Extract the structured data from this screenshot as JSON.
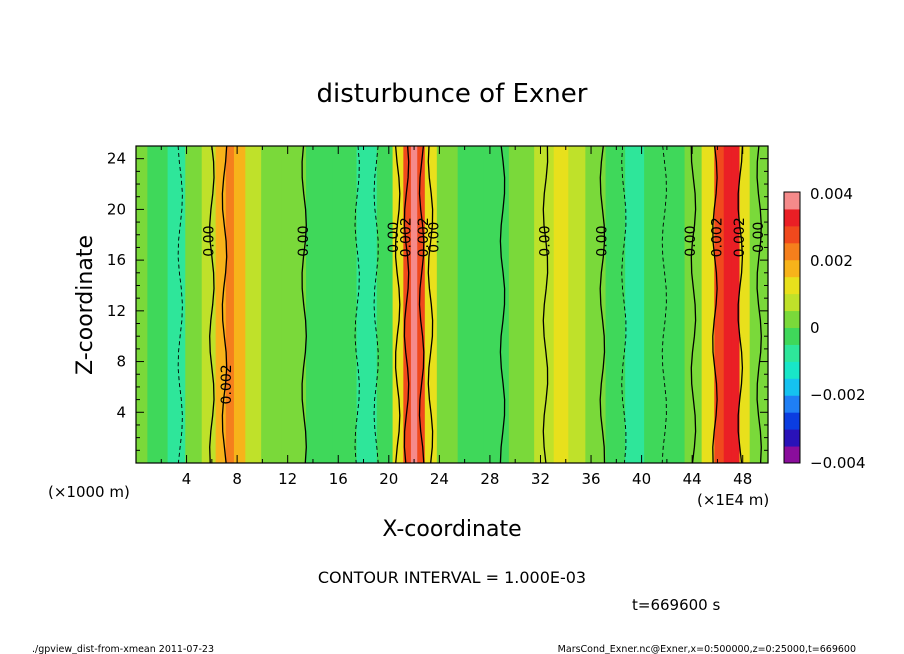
{
  "chart_data": {
    "type": "heatmap",
    "title": "disturbunce of Exner",
    "xlabel": "X-coordinate",
    "ylabel": "Z-coordinate",
    "x_unit_left": "(×1000 m)",
    "x_unit_right": "(×1E4 m)",
    "xlim": [
      0,
      50
    ],
    "ylim": [
      0,
      25
    ],
    "x_ticks": [
      "4",
      "8",
      "12",
      "16",
      "20",
      "24",
      "28",
      "32",
      "36",
      "40",
      "44",
      "48"
    ],
    "y_ticks": [
      "4",
      "8",
      "12",
      "16",
      "20",
      "24"
    ],
    "colorbar": {
      "range": [
        -0.004,
        0.004
      ],
      "labels": [
        "0.004",
        "0.002",
        "0",
        "−0.002",
        "−0.004"
      ],
      "colors": [
        "#8a0d9c",
        "#2a12b8",
        "#0b3de0",
        "#1f7ff5",
        "#15c2f0",
        "#18e6c8",
        "#2ee69a",
        "#3fd85a",
        "#7ad93a",
        "#bfe12a",
        "#e8e01c",
        "#f7b31a",
        "#f57f1c",
        "#f0491d",
        "#ea1f25",
        "#f58a8a"
      ]
    },
    "columns": [
      {
        "x": 0.0,
        "v": 0.0
      },
      {
        "x": 1.8,
        "v": -0.0003
      },
      {
        "x": 3.2,
        "v": -0.0006
      },
      {
        "x": 4.6,
        "v": 0.0
      },
      {
        "x": 5.8,
        "v": 0.0006
      },
      {
        "x": 6.8,
        "v": 0.0015
      },
      {
        "x": 7.4,
        "v": 0.0024
      },
      {
        "x": 8.1,
        "v": 0.0016
      },
      {
        "x": 9.2,
        "v": 0.0007
      },
      {
        "x": 10.6,
        "v": 0.0003
      },
      {
        "x": 12.4,
        "v": 0.0
      },
      {
        "x": 14.5,
        "v": -0.0003
      },
      {
        "x": 16.6,
        "v": -0.0005
      },
      {
        "x": 18.3,
        "v": -0.0007
      },
      {
        "x": 19.8,
        "v": -0.0002
      },
      {
        "x": 20.8,
        "v": 0.001
      },
      {
        "x": 21.5,
        "v": 0.0026
      },
      {
        "x": 22.0,
        "v": 0.0036
      },
      {
        "x": 22.5,
        "v": 0.0028
      },
      {
        "x": 23.2,
        "v": 0.0011
      },
      {
        "x": 24.4,
        "v": 0.0001
      },
      {
        "x": 26.5,
        "v": -0.0002
      },
      {
        "x": 28.5,
        "v": -0.0001
      },
      {
        "x": 30.5,
        "v": 0.0001
      },
      {
        "x": 32.5,
        "v": 0.0006
      },
      {
        "x": 33.6,
        "v": 0.0011
      },
      {
        "x": 34.8,
        "v": 0.0006
      },
      {
        "x": 36.3,
        "v": 0.0002
      },
      {
        "x": 38.0,
        "v": -0.0003
      },
      {
        "x": 39.4,
        "v": -0.0006
      },
      {
        "x": 41.0,
        "v": -0.0004
      },
      {
        "x": 42.6,
        "v": -0.0001
      },
      {
        "x": 44.2,
        "v": 0.0002
      },
      {
        "x": 45.3,
        "v": 0.001
      },
      {
        "x": 46.2,
        "v": 0.0025
      },
      {
        "x": 46.8,
        "v": 0.0034
      },
      {
        "x": 47.4,
        "v": 0.003
      },
      {
        "x": 48.1,
        "v": 0.0014
      },
      {
        "x": 49.0,
        "v": 0.0004
      },
      {
        "x": 50.0,
        "v": 0.0
      }
    ],
    "contours": [
      {
        "x": 6.0,
        "style": "solid"
      },
      {
        "x": 7.0,
        "style": "solid"
      },
      {
        "x": 13.3,
        "style": "solid"
      },
      {
        "x": 20.7,
        "style": "solid"
      },
      {
        "x": 21.4,
        "style": "solid"
      },
      {
        "x": 22.6,
        "style": "solid"
      },
      {
        "x": 23.3,
        "style": "solid"
      },
      {
        "x": 29.0,
        "style": "solid"
      },
      {
        "x": 32.4,
        "style": "solid"
      },
      {
        "x": 36.9,
        "style": "solid"
      },
      {
        "x": 44.1,
        "style": "solid"
      },
      {
        "x": 45.8,
        "style": "solid"
      },
      {
        "x": 47.8,
        "style": "solid"
      },
      {
        "x": 49.3,
        "style": "solid"
      },
      {
        "x": 3.5,
        "style": "dashed"
      },
      {
        "x": 17.5,
        "style": "dashed"
      },
      {
        "x": 19.0,
        "style": "dashed"
      },
      {
        "x": 38.6,
        "style": "dashed"
      },
      {
        "x": 41.8,
        "style": "dashed"
      }
    ],
    "contour_labels": [
      {
        "text": "0.00",
        "x": 5.8,
        "y": 17.5
      },
      {
        "text": "0.00",
        "x": 13.3,
        "y": 17.5
      },
      {
        "text": "0.00",
        "x": 20.4,
        "y": 17.8
      },
      {
        "text": "0.002",
        "x": 21.4,
        "y": 17.8
      },
      {
        "text": "0.002",
        "x": 22.8,
        "y": 17.8
      },
      {
        "text": "0.00",
        "x": 23.6,
        "y": 17.8
      },
      {
        "text": "0.00",
        "x": 32.4,
        "y": 17.5
      },
      {
        "text": "0.00",
        "x": 36.9,
        "y": 17.5
      },
      {
        "text": "0.00",
        "x": 43.9,
        "y": 17.5
      },
      {
        "text": "0.002",
        "x": 46.0,
        "y": 17.8
      },
      {
        "text": "0.002",
        "x": 47.8,
        "y": 17.8
      },
      {
        "text": "0.00",
        "x": 49.3,
        "y": 17.8
      },
      {
        "text": "0.002",
        "x": 7.2,
        "y": 6.2
      }
    ]
  },
  "contour_interval": "CONTOUR INTERVAL = 1.000E-03",
  "time_label": "t=669600 s",
  "footer_left": "./gpview_dist-from-xmean  2011-07-23",
  "footer_right": "MarsCond_Exner.nc@Exner,x=0:500000,z=0:25000,t=669600"
}
